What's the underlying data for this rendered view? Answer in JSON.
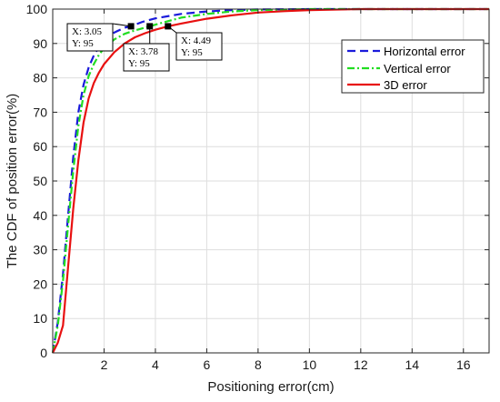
{
  "chart_data": {
    "type": "line",
    "xlabel": "Positioning error(cm)",
    "ylabel": "The CDF of position error(%)",
    "xlim": [
      0,
      17
    ],
    "ylim": [
      0,
      100
    ],
    "xticks": [
      2,
      4,
      6,
      8,
      10,
      12,
      14,
      16
    ],
    "yticks": [
      0,
      10,
      20,
      30,
      40,
      50,
      60,
      70,
      80,
      90,
      100
    ],
    "grid": true,
    "legend_position": "top-right",
    "series": [
      {
        "name": "Horizontal error",
        "color": "#1a1adb",
        "style": "dashed",
        "x": [
          0,
          0.2,
          0.4,
          0.6,
          0.8,
          1.0,
          1.2,
          1.4,
          1.6,
          1.8,
          2.0,
          2.4,
          2.8,
          3.05,
          3.5,
          4.0,
          5.0,
          6.0,
          7.0,
          8.0,
          10.0,
          17.0
        ],
        "values": [
          0,
          9,
          23,
          40,
          57,
          70,
          78,
          83,
          86.5,
          89,
          90.8,
          93.2,
          94.6,
          95,
          96.3,
          97.3,
          98.6,
          99.3,
          99.7,
          99.9,
          100,
          100
        ]
      },
      {
        "name": "Vertical error",
        "color": "#22dd22",
        "style": "dash-dot",
        "x": [
          0,
          0.2,
          0.4,
          0.6,
          0.8,
          1.0,
          1.2,
          1.4,
          1.6,
          1.8,
          2.0,
          2.4,
          2.8,
          3.2,
          3.78,
          4.2,
          5.0,
          6.0,
          7.0,
          8.0,
          10.0,
          17.0
        ],
        "values": [
          0,
          8,
          21,
          37,
          53,
          66,
          75,
          80.5,
          84,
          86.7,
          88.6,
          91.2,
          92.8,
          93.8,
          95,
          95.9,
          97.5,
          98.6,
          99.3,
          99.7,
          100,
          100
        ]
      },
      {
        "name": "3D error",
        "color": "#e81010",
        "style": "solid",
        "x": [
          0,
          0.2,
          0.4,
          0.6,
          0.8,
          1.0,
          1.2,
          1.4,
          1.6,
          1.8,
          2.0,
          2.4,
          2.8,
          3.2,
          3.6,
          4.0,
          4.49,
          5.0,
          6.0,
          7.0,
          8.0,
          9.0,
          10.0,
          12.0,
          17.0
        ],
        "values": [
          0,
          3,
          8,
          25,
          42,
          56,
          67,
          74,
          78.5,
          81.5,
          84,
          87.5,
          90,
          91.8,
          93,
          94,
          95,
          95.8,
          97.2,
          98.2,
          99,
          99.4,
          99.7,
          100,
          100
        ]
      }
    ],
    "annotations": [
      {
        "x": 3.05,
        "y": 95,
        "x_text": "X: 3.05",
        "y_text": "Y: 95"
      },
      {
        "x": 3.78,
        "y": 95,
        "x_text": "X: 3.78",
        "y_text": "Y: 95"
      },
      {
        "x": 4.49,
        "y": 95,
        "x_text": "X: 4.49",
        "y_text": "Y: 95"
      }
    ]
  }
}
